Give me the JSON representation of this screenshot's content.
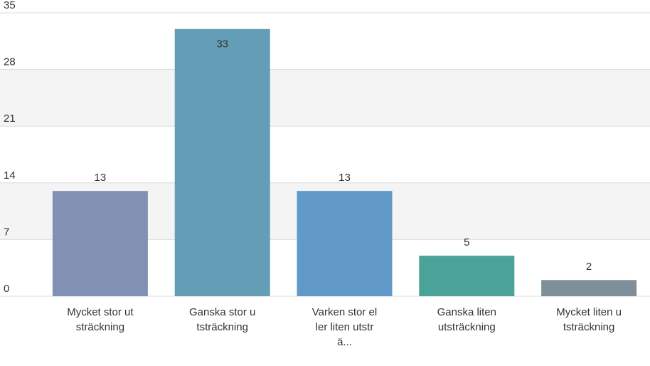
{
  "chart_data": {
    "type": "bar",
    "categories": [
      "Mycket stor utsträckning",
      "Ganska stor utsträckning",
      "Varken stor eller liten utsträ...",
      "Ganska liten utsträckning",
      "Mycket liten utsträckning"
    ],
    "values": [
      13,
      33,
      13,
      5,
      2
    ],
    "colors": [
      "#8191b3",
      "#639db6",
      "#6199c9",
      "#4aa298",
      "#7e8f9a"
    ],
    "ylim": [
      0,
      35
    ],
    "yticks": [
      0,
      7,
      14,
      21,
      28,
      35
    ],
    "grid": true
  }
}
